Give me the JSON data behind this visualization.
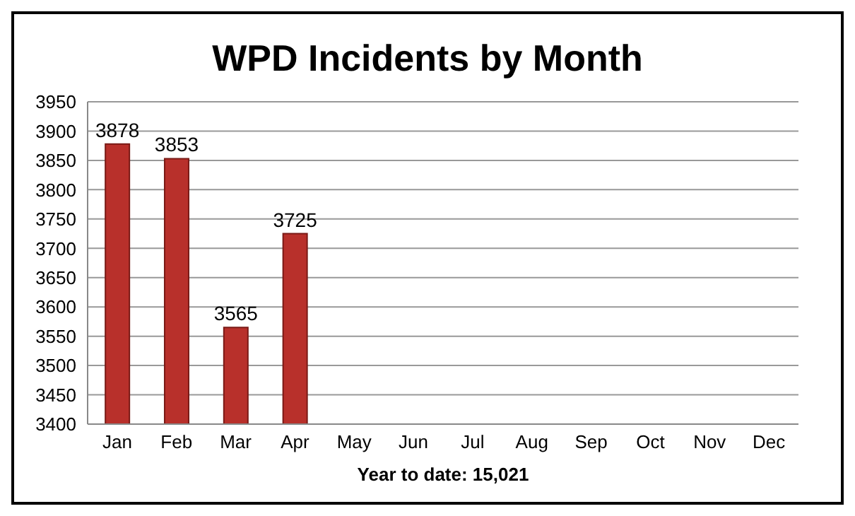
{
  "chart_data": {
    "type": "bar",
    "title": "WPD Incidents by Month",
    "xlabel": "Year to date: 15,021",
    "categories": [
      "Jan",
      "Feb",
      "Mar",
      "Apr",
      "May",
      "Jun",
      "Jul",
      "Aug",
      "Sep",
      "Oct",
      "Nov",
      "Dec"
    ],
    "values": [
      3878,
      3853,
      3565,
      3725,
      null,
      null,
      null,
      null,
      null,
      null,
      null,
      null
    ],
    "color": "#b8302b",
    "ylim": [
      3400,
      3950
    ],
    "yticks": [
      3400,
      3450,
      3500,
      3550,
      3600,
      3650,
      3700,
      3750,
      3800,
      3850,
      3900,
      3950
    ],
    "grid": "y",
    "data_labels": true,
    "legend": false
  }
}
